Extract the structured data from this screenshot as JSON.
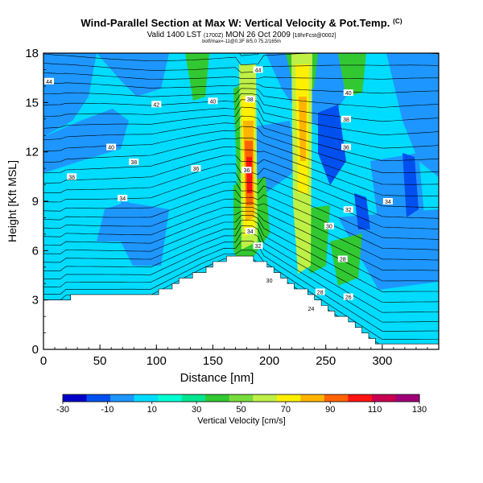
{
  "title": "Wind-Parallel Section at Max W: Vertical Velocity & Pot.Temp.",
  "title_mark": "(C)",
  "subtitle": "Valid 1400 LST",
  "subtitle_small1": "(1700Z)",
  "subtitle_date": "MON 26 Oct 2009",
  "subtitle_small2": "[18hrFcst@0002]",
  "small_note": "botf/max=-11@0.3F 8/5.0 75.2/165m",
  "chart_data": {
    "type": "heatmap",
    "xlabel": "Distance [nm]",
    "ylabel": "Height [Kft MSL]",
    "xlim": [
      0,
      350
    ],
    "ylim": [
      0,
      18
    ],
    "x_ticks": [
      0,
      50,
      100,
      150,
      200,
      250,
      300
    ],
    "y_ticks": [
      0,
      3,
      6,
      9,
      12,
      15,
      18
    ],
    "colorbar": {
      "title": "Vertical Velocity [cm/s]",
      "ticks": [
        -30,
        -10,
        10,
        30,
        50,
        70,
        90,
        110,
        130
      ],
      "colors": [
        "#0000c8",
        "#0050f0",
        "#1e96ff",
        "#00dcff",
        "#00ffd2",
        "#00e690",
        "#32c832",
        "#78dc3c",
        "#bef046",
        "#fff000",
        "#ffb400",
        "#ff6400",
        "#ff1414",
        "#c80050",
        "#a00078"
      ]
    },
    "contour_labels": [
      {
        "text": "44",
        "x": 5,
        "y": 16.3
      },
      {
        "text": "44",
        "x": 190,
        "y": 17.0
      },
      {
        "text": "42",
        "x": 100,
        "y": 14.9
      },
      {
        "text": "40",
        "x": 150,
        "y": 15.1
      },
      {
        "text": "38",
        "x": 183,
        "y": 15.2
      },
      {
        "text": "40",
        "x": 270,
        "y": 15.6
      },
      {
        "text": "38",
        "x": 268,
        "y": 14.0
      },
      {
        "text": "40",
        "x": 60,
        "y": 12.3
      },
      {
        "text": "38",
        "x": 80,
        "y": 11.4
      },
      {
        "text": "38",
        "x": 25,
        "y": 10.5
      },
      {
        "text": "36",
        "x": 135,
        "y": 11.0
      },
      {
        "text": "36",
        "x": 180,
        "y": 10.9
      },
      {
        "text": "36",
        "x": 268,
        "y": 12.3
      },
      {
        "text": "34",
        "x": 70,
        "y": 9.2
      },
      {
        "text": "34",
        "x": 305,
        "y": 9.0
      },
      {
        "text": "32",
        "x": 270,
        "y": 8.5
      },
      {
        "text": "30",
        "x": 253,
        "y": 7.5
      },
      {
        "text": "34",
        "x": 183,
        "y": 7.2
      },
      {
        "text": "32",
        "x": 190,
        "y": 6.3
      },
      {
        "text": "30",
        "x": 200,
        "y": 4.2
      },
      {
        "text": "28",
        "x": 265,
        "y": 5.5
      },
      {
        "text": "28",
        "x": 245,
        "y": 3.5
      },
      {
        "text": "26",
        "x": 270,
        "y": 3.2
      },
      {
        "text": "24",
        "x": 237,
        "y": 2.5
      }
    ]
  }
}
